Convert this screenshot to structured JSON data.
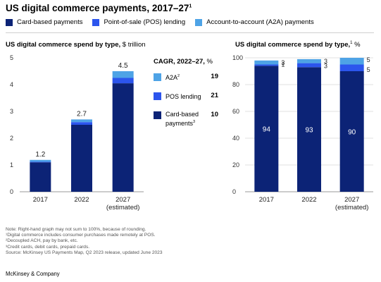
{
  "title": "US digital commerce payments, 2017–27",
  "title_sup": "1",
  "colors": {
    "card": "#0c2376",
    "pos": "#2c55ed",
    "a2a": "#4ea3e6",
    "axis": "#9a9a9a",
    "grid": "#d9d9d9"
  },
  "legend": [
    {
      "label": "Card-based payments",
      "color": "#0c2376"
    },
    {
      "label": "Point-of-sale (POS) lending",
      "color": "#2c55ed"
    },
    {
      "label": "Account-to-account (A2A) payments",
      "color": "#4ea3e6"
    }
  ],
  "cagr": {
    "title": "CAGR, 2022–27,",
    "unit": " %",
    "items": [
      {
        "label": "A2A",
        "sup": "2",
        "value": "19",
        "color": "#4ea3e6"
      },
      {
        "label": "POS lending",
        "sup": "",
        "value": "21",
        "color": "#2c55ed"
      },
      {
        "label": "Card-based payments",
        "sup": "3",
        "value": "10",
        "color": "#0c2376"
      }
    ]
  },
  "chart_data": [
    {
      "type": "bar",
      "stacked": true,
      "title": "US digital commerce spend by type,",
      "unit": " $ trillion",
      "categories": [
        "2017",
        "2022",
        "2027"
      ],
      "category_sublabels": [
        "",
        "",
        "(estimated)"
      ],
      "totals": [
        1.2,
        2.7,
        4.5
      ],
      "ylim": [
        0,
        5
      ],
      "yticks": [
        0,
        1,
        2,
        3,
        4,
        5
      ],
      "grid": false,
      "series": [
        {
          "name": "Card-based payments",
          "values": [
            1.1,
            2.5,
            4.05
          ]
        },
        {
          "name": "Point-of-sale (POS) lending",
          "values": [
            0.02,
            0.1,
            0.2
          ]
        },
        {
          "name": "Account-to-account (A2A) payments",
          "values": [
            0.07,
            0.1,
            0.25
          ]
        }
      ]
    },
    {
      "type": "bar",
      "stacked": true,
      "title": "US digital commerce spend by type,",
      "title_sup": "1",
      "unit": " %",
      "categories": [
        "2017",
        "2022",
        "2027"
      ],
      "category_sublabels": [
        "",
        "",
        "(estimated)"
      ],
      "ylim": [
        0,
        100
      ],
      "yticks": [
        0,
        20,
        40,
        60,
        80,
        100
      ],
      "grid": true,
      "series": [
        {
          "name": "Card-based payments",
          "values": [
            94,
            93,
            90
          ]
        },
        {
          "name": "Point-of-sale (POS) lending",
          "values": [
            1,
            3,
            5
          ]
        },
        {
          "name": "Account-to-account (A2A) payments",
          "values": [
            3,
            3,
            5
          ]
        }
      ]
    }
  ],
  "notes": [
    "Note: Right-hand graph may not sum to 100%, because of rounding.",
    "¹Digital commerce includes consumer purchases made remotely at POS.",
    "²Decoupled ACH, pay by bank, etc.",
    "³Credit cards, debit cards, prepaid cards.",
    "Source: McKinsey US Payments Map, Q2 2023 release, updated June 2023"
  ],
  "brand": "McKinsey & Company"
}
